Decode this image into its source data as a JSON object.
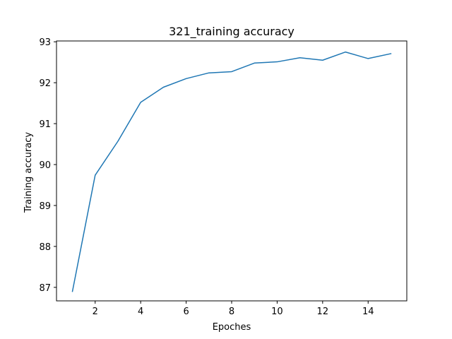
{
  "chart_data": {
    "type": "line",
    "title": "321_training accuracy",
    "xlabel": "Epoches",
    "ylabel": "Training accuracy",
    "xlim": [
      0.3,
      15.7
    ],
    "ylim": [
      86.67,
      93.02
    ],
    "xticks": [
      2,
      4,
      6,
      8,
      10,
      12,
      14
    ],
    "yticks": [
      87,
      88,
      89,
      90,
      91,
      92,
      93
    ],
    "grid": false,
    "legend": "none",
    "line_color": "#1f77b4",
    "series": [
      {
        "x": [
          1,
          2,
          3,
          4,
          5,
          6,
          7,
          8,
          9,
          10,
          11,
          12,
          13,
          14,
          15
        ],
        "values": [
          86.9,
          89.74,
          90.57,
          91.52,
          91.89,
          92.1,
          92.24,
          92.27,
          92.48,
          92.51,
          92.61,
          92.55,
          92.75,
          92.59,
          92.71
        ]
      }
    ]
  }
}
